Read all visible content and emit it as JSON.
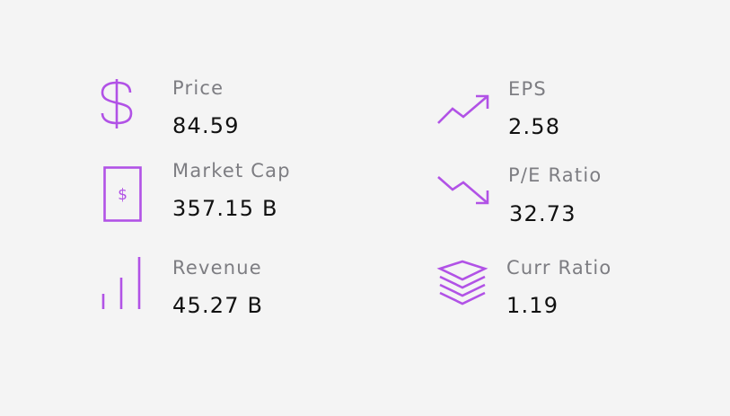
{
  "accent_color": "#b152e6",
  "metrics": [
    {
      "icon": "dollar-icon",
      "label": "Price",
      "value": "84.59"
    },
    {
      "icon": "trending-up-icon",
      "label": "EPS",
      "value": "2.58"
    },
    {
      "icon": "dollar-bill-icon",
      "label": "Market Cap",
      "value": "357.15 B"
    },
    {
      "icon": "trending-down-icon",
      "label": "P/E Ratio",
      "value": "32.73"
    },
    {
      "icon": "bar-chart-icon",
      "label": "Revenue",
      "value": "45.27 B"
    },
    {
      "icon": "layers-icon",
      "label": "Curr Ratio",
      "value": "1.19"
    }
  ]
}
